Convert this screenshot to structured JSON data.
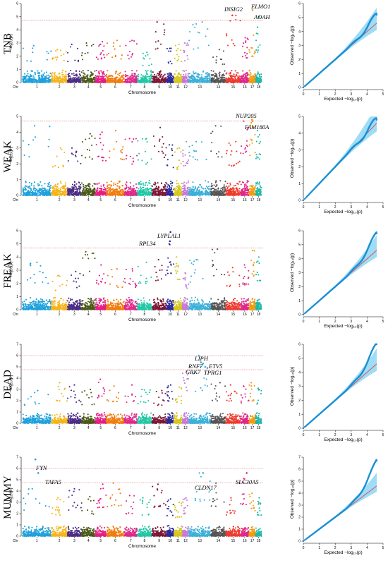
{
  "figure": {
    "colors": {
      "chromosomes": [
        "#1fa1dc",
        "#f6b41a",
        "#4b2d85",
        "#4b5a18",
        "#e61e83",
        "#f07d0f",
        "#e0288a",
        "#22c7a5",
        "#7d1736",
        "#2a2a9a",
        "#d7c61e",
        "#c77ad7",
        "#3bb0d8",
        "#555555",
        "#ee3b2e",
        "#e0288a",
        "#f59a0f",
        "#1fb8a8"
      ],
      "threshold_line": "#e05a5a",
      "qq_points": "#1b90d6",
      "qq_band": "#7fd0f2",
      "qq_reference": "#e23a3a"
    }
  },
  "shared": {
    "manhattan_xlabel": "Chromosome",
    "manhattan_ylabel": "−log₁₀(p)",
    "chr_tick_prefix": "Chr",
    "chromosomes": [
      "1",
      "2",
      "3",
      "4",
      "5",
      "6",
      "7",
      "8",
      "9",
      "10",
      "11",
      "12",
      "13",
      "14",
      "15",
      "16",
      "17",
      "18"
    ],
    "qq_xlabel": "Expected −log₁₀(p)",
    "qq_ylabel": "Observed −log₁₀(p)",
    "qq_x_ticks": [
      "0",
      "1",
      "2",
      "3",
      "4",
      "5"
    ]
  },
  "chart_data": [
    {
      "trait": "TNB",
      "type": "scatter",
      "ylim": [
        0,
        6
      ],
      "y_ticks": [
        "0",
        "1",
        "2",
        "3",
        "4",
        "5",
        "6"
      ],
      "thresholds": [
        4.75
      ],
      "background_max": [
        2.8,
        2.5,
        2.9,
        3.0,
        3.1,
        3.2,
        3.2,
        2.3,
        4.6,
        2.6,
        2.9,
        3.0,
        4.6,
        2.5,
        5.1,
        3.4,
        3.6,
        4.2
      ],
      "peaks": [
        {
          "gene": "INSIG2",
          "chr": "15",
          "y": 5.1
        },
        {
          "gene": "ELMO1",
          "chr": "17",
          "y": 5.5
        },
        {
          "gene": "AOAH",
          "chr": "18",
          "y": 5.0
        }
      ],
      "qq": {
        "ylim": [
          0,
          6
        ],
        "y_ticks": [
          "0",
          "1",
          "2",
          "3",
          "4",
          "5",
          "6"
        ],
        "max_expected": 4.6,
        "max_observed": 5.2
      }
    },
    {
      "trait": "WEAK",
      "type": "scatter",
      "ylim": [
        0,
        5
      ],
      "y_ticks": [
        "0",
        "1",
        "2",
        "3",
        "4",
        "5"
      ],
      "thresholds": [
        4.7
      ],
      "background_max": [
        4.4,
        3.0,
        3.0,
        3.9,
        4.0,
        4.1,
        3.6,
        3.6,
        4.3,
        3.2,
        3.0,
        3.4,
        3.4,
        4.4,
        3.4,
        4.7,
        4.6,
        4.1
      ],
      "peaks": [
        {
          "gene": "NUP205",
          "chr": "17",
          "y": 4.8
        },
        {
          "gene": "FAM180A",
          "chr": "17",
          "y": 4.7
        }
      ],
      "qq": {
        "ylim": [
          0,
          5
        ],
        "y_ticks": [
          "0",
          "1",
          "2",
          "3",
          "4",
          "5"
        ],
        "max_expected": 4.6,
        "max_observed": 4.8
      }
    },
    {
      "trait": "FREAK",
      "type": "scatter",
      "ylim": [
        0,
        6
      ],
      "y_ticks": [
        "0",
        "1",
        "2",
        "3",
        "4",
        "5",
        "6"
      ],
      "thresholds": [
        4.7
      ],
      "background_max": [
        3.6,
        2.6,
        2.9,
        4.4,
        3.4,
        3.1,
        3.1,
        3.6,
        3.8,
        5.0,
        4.0,
        2.8,
        3.8,
        4.6,
        3.2,
        3.4,
        4.5,
        4.0
      ],
      "peaks": [
        {
          "gene": "RPL34",
          "chr": "10",
          "y": 5.2
        },
        {
          "gene": "LYPLAL1",
          "chr": "10",
          "y": 5.9
        }
      ],
      "qq": {
        "ylim": [
          0,
          6
        ],
        "y_ticks": [
          "0",
          "1",
          "2",
          "3",
          "4",
          "5",
          "6"
        ],
        "max_expected": 4.6,
        "max_observed": 5.8
      }
    },
    {
      "trait": "DEAD",
      "type": "scatter",
      "ylim": [
        0,
        7
      ],
      "y_ticks": [
        "0",
        "1",
        "2",
        "3",
        "4",
        "5",
        "6",
        "7"
      ],
      "thresholds": [
        6.0,
        4.75
      ],
      "background_max": [
        2.9,
        3.6,
        3.4,
        3.0,
        3.9,
        3.3,
        3.4,
        3.0,
        2.9,
        3.4,
        3.2,
        4.6,
        5.0,
        3.6,
        3.4,
        3.3,
        3.6,
        3.1
      ],
      "peaks": [
        {
          "gene": "LIPH",
          "chr": "13",
          "y": 6.0
        },
        {
          "gene": "RNF7",
          "chr": "13",
          "y": 5.4
        },
        {
          "gene": "ETV5",
          "chr": "13",
          "y": 5.3
        },
        {
          "gene": "GRK7",
          "chr": "13",
          "y": 5.0
        },
        {
          "gene": "TPRG1",
          "chr": "13",
          "y": 4.9
        }
      ],
      "qq": {
        "ylim": [
          0,
          6
        ],
        "y_ticks": [
          "0",
          "1",
          "2",
          "3",
          "4",
          "5",
          "6"
        ],
        "max_expected": 4.6,
        "max_observed": 6.0
      }
    },
    {
      "trait": "MUMMY",
      "type": "scatter",
      "ylim": [
        0,
        7
      ],
      "y_ticks": [
        "0",
        "1",
        "2",
        "3",
        "4",
        "5",
        "6",
        "7"
      ],
      "thresholds": [
        6.0,
        4.75
      ],
      "background_max": [
        4.2,
        3.4,
        4.2,
        3.5,
        4.6,
        4.7,
        3.6,
        3.4,
        4.6,
        3.3,
        3.0,
        3.4,
        5.6,
        4.7,
        3.4,
        5.1,
        3.8,
        3.4
      ],
      "peaks": [
        {
          "gene": "FYN",
          "chr": "1",
          "y": 6.8
        },
        {
          "gene": "TAFA5",
          "chr": "1",
          "y": 5.6
        },
        {
          "gene": "CLDN17",
          "chr": "13",
          "y": 5.6
        },
        {
          "gene": "SLC30A5",
          "chr": "16",
          "y": 5.6
        }
      ],
      "qq": {
        "ylim": [
          0,
          7
        ],
        "y_ticks": [
          "0",
          "1",
          "2",
          "3",
          "4",
          "5",
          "6",
          "7"
        ],
        "max_expected": 4.6,
        "max_observed": 6.7
      }
    }
  ]
}
